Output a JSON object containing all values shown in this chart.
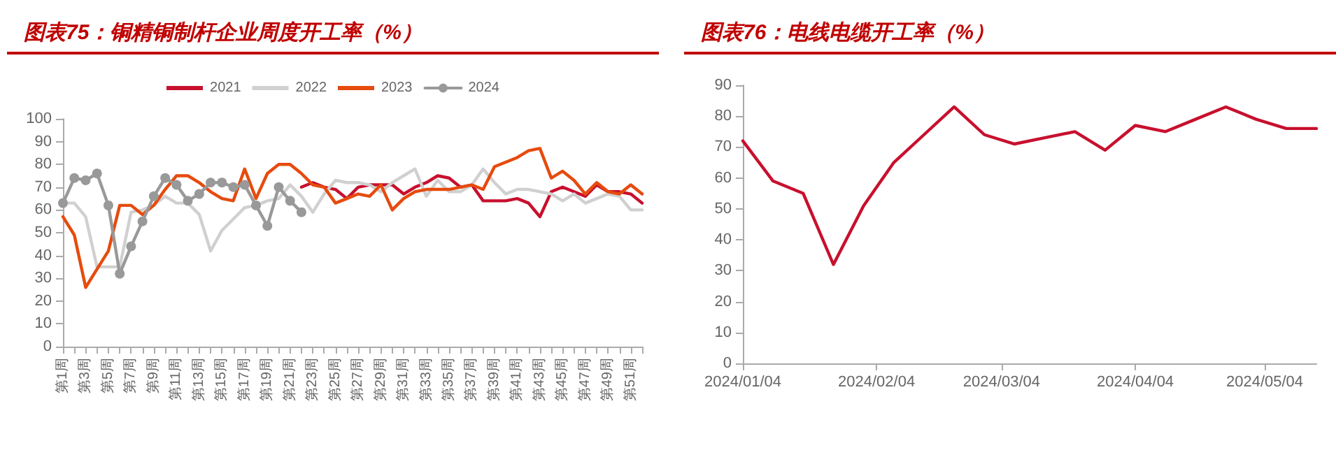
{
  "chart_data": [
    {
      "type": "line",
      "title": "图表75：铜精铜制杆企业周度开工率（%）",
      "categories": [
        "第1周",
        null,
        "第3周",
        null,
        "第5周",
        null,
        "第7周",
        null,
        "第9周",
        null,
        "第11周",
        null,
        "第13周",
        null,
        "第15周",
        null,
        "第17周",
        null,
        "第19周",
        null,
        "第21周",
        null,
        "第23周",
        null,
        "第25周",
        null,
        "第27周",
        null,
        "第29周",
        null,
        "第31周",
        null,
        "第33周",
        null,
        "第35周",
        null,
        "第37周",
        null,
        "第39周",
        null,
        "第41周",
        null,
        "第43周",
        null,
        "第45周",
        null,
        "第47周",
        null,
        "第49周",
        null,
        "第51周",
        null
      ],
      "series": [
        {
          "name": "2021",
          "color": "#c8102e",
          "values": [
            null,
            null,
            null,
            null,
            null,
            null,
            null,
            null,
            null,
            null,
            null,
            null,
            null,
            null,
            null,
            null,
            null,
            null,
            null,
            null,
            null,
            70,
            72,
            70,
            69,
            65,
            70,
            71,
            71,
            71,
            67,
            70,
            72,
            75,
            74,
            70,
            71,
            64,
            64,
            64,
            65,
            63,
            57,
            68,
            70,
            68,
            66,
            71,
            68,
            68,
            67,
            63
          ]
        },
        {
          "name": "2022",
          "color": "#d0d0d0",
          "values": [
            63,
            63,
            57,
            35,
            35,
            35,
            59,
            60,
            62,
            66,
            63,
            63,
            58,
            42,
            51,
            56,
            61,
            62,
            64,
            65,
            71,
            66,
            59,
            67,
            73,
            72,
            72,
            71,
            68,
            72,
            75,
            78,
            66,
            73,
            68,
            68,
            71,
            78,
            72,
            67,
            69,
            69,
            68,
            67,
            64,
            67,
            63,
            65,
            67,
            66,
            60,
            60
          ]
        },
        {
          "name": "2023",
          "color": "#e64b0e",
          "values": [
            57,
            49,
            26,
            34,
            42,
            62,
            62,
            58,
            62,
            69,
            75,
            75,
            72,
            68,
            65,
            64,
            78,
            65,
            76,
            80,
            80,
            76,
            71,
            70,
            63,
            65,
            67,
            66,
            71,
            60,
            65,
            68,
            69,
            69,
            69,
            70,
            71,
            69,
            79,
            81,
            83,
            86,
            87,
            74,
            77,
            73,
            67,
            72,
            68,
            67,
            71,
            67
          ]
        },
        {
          "name": "2024",
          "color": "#999999",
          "marker": "circle",
          "values": [
            63,
            74,
            73,
            76,
            62,
            32,
            44,
            55,
            66,
            74,
            71,
            64,
            67,
            72,
            72,
            70,
            71,
            62,
            53,
            70,
            64,
            59,
            null,
            null,
            null,
            null,
            null,
            null,
            null,
            null,
            null,
            null,
            null,
            null,
            null,
            null,
            null,
            null,
            null,
            null,
            null,
            null,
            null,
            null,
            null,
            null,
            null,
            null,
            null,
            null,
            null,
            null
          ]
        }
      ],
      "ylim": [
        0,
        100
      ],
      "yticks": [
        0,
        10,
        20,
        30,
        40,
        50,
        60,
        70,
        80,
        90,
        100
      ],
      "grid": false,
      "legend": "top",
      "marker": "none",
      "line_style": "solid"
    },
    {
      "type": "line",
      "title": "图表76：电线电缆开工率（%）",
      "x": [
        "2024-01-04",
        "2024-01-11",
        "2024-01-18",
        "2024-01-25",
        "2024-02-01",
        "2024-02-08",
        "2024-02-15",
        "2024-02-22",
        "2024-02-29",
        "2024-03-07",
        "2024-03-14",
        "2024-03-21",
        "2024-03-28",
        "2024-04-04",
        "2024-04-11",
        "2024-04-18",
        "2024-04-25",
        "2024-05-02",
        "2024-05-09",
        "2024-05-16"
      ],
      "series": [
        {
          "color": "#c8102e",
          "values": [
            72,
            59,
            55,
            32,
            51,
            65,
            74,
            83,
            74,
            71,
            73,
            75,
            69,
            77,
            75,
            79,
            83,
            79,
            76,
            76
          ]
        }
      ],
      "xlim": [
        "2024-01-04",
        "2024-05-16"
      ],
      "xticks": [
        {
          "value": "2024-01-04",
          "label": "2024/01/04"
        },
        {
          "value": "2024-02-04",
          "label": "2024/02/04"
        },
        {
          "value": "2024-03-04",
          "label": "2024/03/04"
        },
        {
          "value": "2024-04-04",
          "label": "2024/04/04"
        },
        {
          "value": "2024-05-04",
          "label": "2024/05/04"
        }
      ],
      "ylim": [
        0,
        90
      ],
      "yticks": [
        0,
        10,
        20,
        30,
        40,
        50,
        60,
        70,
        80,
        90
      ],
      "grid": false,
      "legend": false,
      "marker": "none",
      "line_style": "solid"
    }
  ]
}
